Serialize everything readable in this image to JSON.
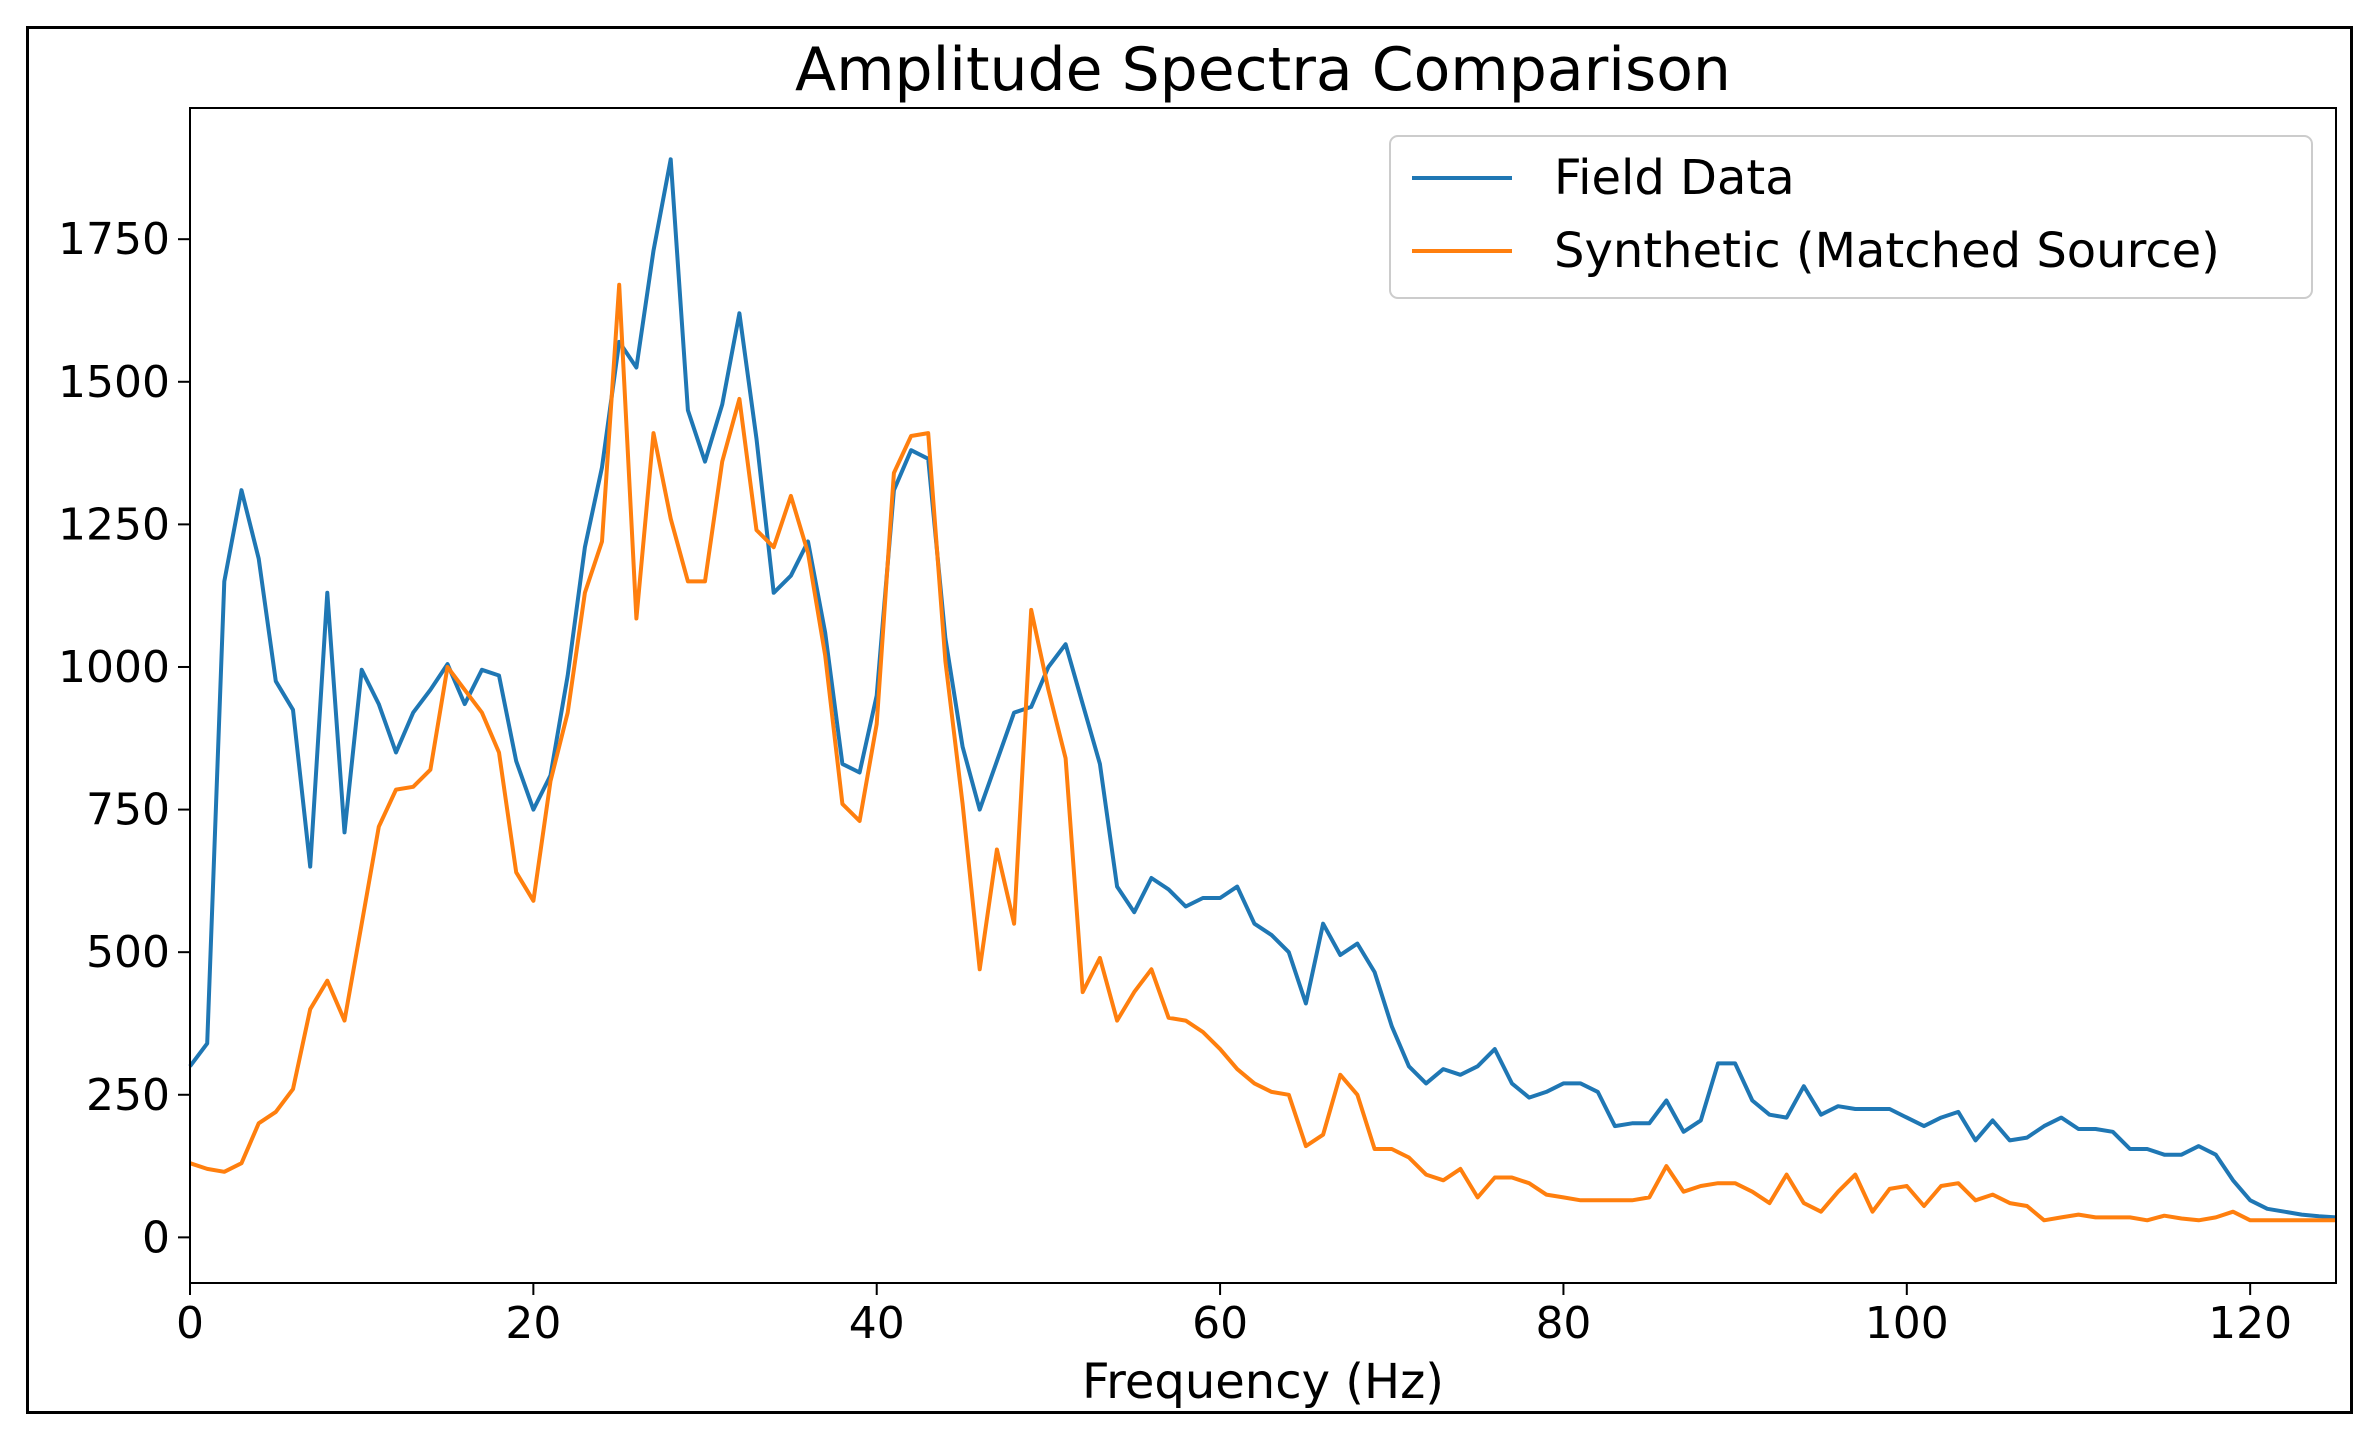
{
  "chart_data": {
    "type": "line",
    "title": "Amplitude Spectra Comparison",
    "xlabel": "Frequency (Hz)",
    "ylabel": "",
    "xlim": [
      0,
      125
    ],
    "ylim": [
      -80,
      1980
    ],
    "xticks": [
      0,
      20,
      40,
      60,
      80,
      100,
      120
    ],
    "yticks": [
      0,
      250,
      500,
      750,
      1000,
      1250,
      1500,
      1750
    ],
    "grid": false,
    "legend_position": "top-right",
    "series": [
      {
        "name": "Field Data",
        "color": "#1f77b4",
        "x": [
          0,
          1,
          2,
          3,
          4,
          5,
          6,
          7,
          8,
          9,
          10,
          11,
          12,
          13,
          14,
          15,
          16,
          17,
          18,
          19,
          20,
          21,
          22,
          23,
          24,
          25,
          26,
          27,
          28,
          29,
          30,
          31,
          32,
          33,
          34,
          35,
          36,
          37,
          38,
          39,
          40,
          41,
          42,
          43,
          44,
          45,
          46,
          47,
          48,
          49,
          50,
          51,
          52,
          53,
          54,
          55,
          56,
          57,
          58,
          59,
          60,
          61,
          62,
          63,
          64,
          65,
          66,
          67,
          68,
          69,
          70,
          71,
          72,
          73,
          74,
          75,
          76,
          77,
          78,
          79,
          80,
          81,
          82,
          83,
          84,
          85,
          86,
          87,
          88,
          89,
          90,
          91,
          92,
          93,
          94,
          95,
          96,
          97,
          98,
          99,
          100,
          101,
          102,
          103,
          104,
          105,
          106,
          107,
          108,
          109,
          110,
          111,
          112,
          113,
          114,
          115,
          116,
          117,
          118,
          119,
          120,
          121,
          122,
          123,
          124,
          125
        ],
        "values": [
          300,
          340,
          1150,
          1310,
          1190,
          975,
          925,
          650,
          1130,
          710,
          995,
          935,
          850,
          920,
          960,
          1005,
          935,
          995,
          985,
          835,
          750,
          810,
          985,
          1210,
          1350,
          1570,
          1525,
          1730,
          1890,
          1450,
          1360,
          1460,
          1620,
          1400,
          1130,
          1160,
          1220,
          1060,
          830,
          815,
          950,
          1310,
          1380,
          1365,
          1050,
          860,
          750,
          835,
          920,
          930,
          1000,
          1040,
          935,
          830,
          615,
          570,
          630,
          610,
          580,
          595,
          595,
          615,
          550,
          530,
          500,
          410,
          550,
          495,
          515,
          465,
          370,
          300,
          270,
          295,
          285,
          300,
          330,
          270,
          245,
          255,
          270,
          270,
          255,
          195,
          200,
          200,
          240,
          185,
          205,
          305,
          305,
          240,
          215,
          210,
          265,
          215,
          230,
          225,
          225,
          225,
          210,
          195,
          210,
          220,
          170,
          205,
          170,
          175,
          195,
          210,
          190,
          190,
          185,
          155,
          155,
          145,
          145,
          160,
          145,
          100,
          65,
          50,
          45,
          40,
          37,
          35
        ],
        "line_points": "M0.0,0.0"
      },
      {
        "name": "Synthetic (Matched Source)",
        "color": "#ff7f0e",
        "x": [
          0,
          1,
          2,
          3,
          4,
          5,
          6,
          7,
          8,
          9,
          10,
          11,
          12,
          13,
          14,
          15,
          16,
          17,
          18,
          19,
          20,
          21,
          22,
          23,
          24,
          25,
          26,
          27,
          28,
          29,
          30,
          31,
          32,
          33,
          34,
          35,
          36,
          37,
          38,
          39,
          40,
          41,
          42,
          43,
          44,
          45,
          46,
          47,
          48,
          49,
          50,
          51,
          52,
          53,
          54,
          55,
          56,
          57,
          58,
          59,
          60,
          61,
          62,
          63,
          64,
          65,
          66,
          67,
          68,
          69,
          70,
          71,
          72,
          73,
          74,
          75,
          76,
          77,
          78,
          79,
          80,
          81,
          82,
          83,
          84,
          85,
          86,
          87,
          88,
          89,
          90,
          91,
          92,
          93,
          94,
          95,
          96,
          97,
          98,
          99,
          100,
          101,
          102,
          103,
          104,
          105,
          106,
          107,
          108,
          109,
          110,
          111,
          112,
          113,
          114,
          115,
          116,
          117,
          118,
          119,
          120,
          121,
          122,
          123,
          124,
          125
        ],
        "values": [
          130,
          120,
          115,
          130,
          200,
          220,
          260,
          400,
          450,
          380,
          550,
          720,
          785,
          790,
          820,
          1000,
          960,
          920,
          850,
          640,
          590,
          800,
          920,
          1130,
          1220,
          1670,
          1085,
          1410,
          1260,
          1150,
          1150,
          1360,
          1470,
          1240,
          1210,
          1300,
          1200,
          1020,
          760,
          730,
          900,
          1340,
          1405,
          1410,
          1010,
          760,
          470,
          680,
          550,
          1100,
          960,
          840,
          430,
          490,
          380,
          430,
          470,
          385,
          380,
          360,
          330,
          295,
          270,
          255,
          250,
          160,
          180,
          285,
          250,
          155,
          155,
          140,
          110,
          100,
          120,
          70,
          105,
          105,
          95,
          75,
          70,
          65,
          65,
          65,
          65,
          70,
          125,
          80,
          90,
          95,
          95,
          80,
          60,
          110,
          60,
          45,
          80,
          110,
          45,
          85,
          90,
          55,
          90,
          95,
          65,
          75,
          60,
          55,
          30,
          35,
          40,
          35,
          35,
          35,
          30,
          38,
          33,
          30,
          35,
          45,
          30,
          30,
          30,
          30,
          30,
          30
        ],
        "line_points": "M0.0,0.0"
      }
    ]
  }
}
